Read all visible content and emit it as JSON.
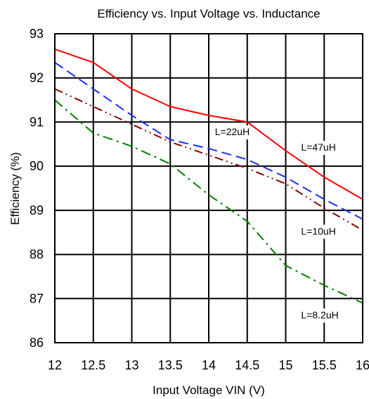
{
  "chart_data": {
    "type": "line",
    "title": "Efficiency vs. Input Voltage vs. Inductance",
    "xlabel": "Input Voltage VIN (V)",
    "ylabel": "Efficiency  (%)",
    "xlim": [
      12,
      16
    ],
    "ylim": [
      86,
      93
    ],
    "xticks": [
      "12",
      "12.5",
      "13",
      "13.5",
      "14",
      "14.5",
      "15",
      "15.5",
      "16"
    ],
    "yticks": [
      "86",
      "87",
      "88",
      "89",
      "90",
      "91",
      "92",
      "93"
    ],
    "grid": true,
    "series": [
      {
        "name": "L=47uH",
        "color": "#ff0000",
        "dash": "solid",
        "x": [
          12,
          12.5,
          13,
          13.5,
          14,
          14.5,
          15,
          15.5,
          16
        ],
        "y": [
          92.65,
          92.35,
          91.75,
          91.35,
          91.15,
          91.0,
          90.35,
          89.75,
          89.25
        ]
      },
      {
        "name": "L=22uH",
        "color": "#1f2fff",
        "dash": "dash",
        "x": [
          12,
          12.5,
          13,
          13.5,
          14,
          14.5,
          15,
          15.5,
          16
        ],
        "y": [
          92.35,
          91.75,
          91.15,
          90.6,
          90.4,
          90.15,
          89.75,
          89.25,
          88.8
        ]
      },
      {
        "name": "L=10uH",
        "color": "#8b0000",
        "dash": "dashdotdot",
        "x": [
          12,
          12.5,
          13,
          13.5,
          14,
          14.5,
          15,
          15.5,
          16
        ],
        "y": [
          91.75,
          91.35,
          90.95,
          90.55,
          90.25,
          89.95,
          89.6,
          89.05,
          88.55
        ]
      },
      {
        "name": "L=8.2uH",
        "color": "#008000",
        "dash": "dashdot",
        "x": [
          12,
          12.5,
          13,
          13.5,
          14,
          14.5,
          15,
          15.5,
          16
        ],
        "y": [
          91.5,
          90.75,
          90.45,
          90.05,
          89.35,
          88.75,
          87.75,
          87.3,
          86.9
        ]
      }
    ],
    "annotations": [
      {
        "text": "L=22uH",
        "x": 14.08,
        "y": 90.7
      },
      {
        "text": "L=47uH",
        "x": 15.2,
        "y": 90.35
      },
      {
        "text": "L=10uH",
        "x": 15.2,
        "y": 88.45
      },
      {
        "text": "L=8.2uH",
        "x": 15.2,
        "y": 86.55
      }
    ]
  }
}
